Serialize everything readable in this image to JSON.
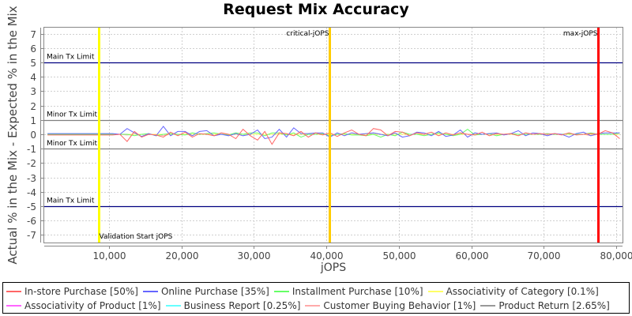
{
  "title": "Request Mix Accuracy",
  "chart_data": {
    "type": "line",
    "title": "Request Mix Accuracy",
    "xlabel": "jOPS",
    "ylabel": "Actual % in the Mix - Expected % in the Mix",
    "xlim": [
      1000,
      81000
    ],
    "ylim": [
      -7.5,
      7.5
    ],
    "x_ticks": [
      "10,000",
      "20,000",
      "30,000",
      "40,000",
      "50,000",
      "60,000",
      "70,000",
      "80,000"
    ],
    "x_tick_values": [
      10000,
      20000,
      30000,
      40000,
      50000,
      60000,
      70000,
      80000
    ],
    "y_ticks": [
      7,
      6,
      5,
      4,
      3,
      2,
      1,
      0,
      -1,
      -2,
      -3,
      -4,
      -5,
      -6,
      -7
    ],
    "grid": true,
    "legend_position": "bottom",
    "markers": [
      {
        "label": "Validation Start jOPS",
        "x": 8600,
        "color": "#ffff00"
      },
      {
        "label": "critical-jOPS",
        "x": 40400,
        "color": "#ffcc00"
      },
      {
        "label": "max-jOPS",
        "x": 77500,
        "color": "#ff0000"
      }
    ],
    "limits": [
      {
        "label": "Main Tx Limit",
        "y": 5,
        "color": "#000080"
      },
      {
        "label": "Minor Tx Limit",
        "y": 1,
        "color": "#808080"
      },
      {
        "label": "Minor Tx Limit",
        "y": -1,
        "color": "#808080"
      },
      {
        "label": "Main Tx Limit",
        "y": -5,
        "color": "#000080"
      }
    ],
    "series": [
      {
        "name": "In-store Purchase [50%]",
        "color": "#ff6666",
        "values": [
          -0.05,
          -0.05,
          -0.05,
          -0.05,
          -0.05,
          -0.05,
          -0.05,
          -0.05,
          -0.05,
          -0.05,
          0,
          -0.5,
          0.2,
          -0.2,
          0,
          -0.05,
          -0.2,
          0.15,
          -0.1,
          0.15,
          -0.2,
          0.05,
          0,
          -0.1,
          0.1,
          0,
          -0.3,
          0.35,
          -0.1,
          -0.4,
          0.2,
          -0.7,
          0.1,
          0.05,
          -0.1,
          0.2,
          -0.2,
          0.1,
          -0.05,
          0.1,
          -0.15,
          0.1,
          0.3,
          0,
          -0.1,
          0.4,
          0.3,
          -0.1,
          0.2,
          0.15,
          -0.1,
          0.1,
          0,
          0.15,
          -0.1,
          0.1,
          -0.05,
          0.1,
          0,
          -0.05,
          0.15,
          -0.1,
          0.05,
          0,
          0.05,
          -0.1,
          0.1,
          0,
          0.05,
          0,
          0.05,
          -0.05,
          0.1,
          -0.05,
          0,
          0.05,
          0,
          0.25,
          0.1,
          -0.3
        ]
      },
      {
        "name": "Online Purchase [35%]",
        "color": "#6666ff",
        "values": [
          0.05,
          0.05,
          0.05,
          0.05,
          0.05,
          0.05,
          0.05,
          0.05,
          0.05,
          0.05,
          0,
          0.4,
          0.1,
          -0.15,
          0.05,
          -0.1,
          0.55,
          -0.1,
          0.2,
          0.2,
          -0.1,
          0.2,
          0.25,
          -0.1,
          0,
          -0.1,
          0.05,
          -0.1,
          0,
          0.3,
          -0.3,
          -0.2,
          0.35,
          -0.2,
          0.45,
          0.05,
          0.05,
          0.1,
          0.1,
          -0.2,
          0.1,
          -0.1,
          0.1,
          0,
          0.05,
          0.1,
          0,
          -0.1,
          0.1,
          -0.2,
          -0.1,
          0.15,
          0.1,
          -0.1,
          0.2,
          -0.15,
          -0.05,
          0.3,
          -0.2,
          0.1,
          0,
          0.05,
          0.1,
          -0.05,
          0.05,
          0.25,
          -0.1,
          0.1,
          0.05,
          -0.1,
          0.05,
          0,
          -0.2,
          0.05,
          0.15,
          -0.1,
          0.05,
          0.1,
          0.1,
          0.1
        ]
      },
      {
        "name": "Installment Purchase [10%]",
        "color": "#66ff66",
        "values": [
          0,
          0,
          0,
          0,
          0,
          0,
          0,
          0,
          0,
          0,
          0,
          0,
          -0.1,
          0,
          0.05,
          -0.1,
          0,
          0.05,
          0,
          -0.05,
          0.1,
          0,
          0.05,
          0.1,
          0,
          -0.05,
          0.1,
          0,
          0.1,
          0.1,
          -0.1,
          0.1,
          0.1,
          -0.05,
          0.1,
          -0.2,
          0,
          0,
          0.05,
          -0.1,
          0,
          0.05,
          -0.05,
          -0.05,
          -0.1,
          0,
          -0.2,
          0,
          -0.1,
          0.15,
          0,
          0,
          -0.1,
          0,
          0.1,
          0,
          -0.1,
          0,
          0.35,
          -0.05,
          0,
          0.05,
          -0.1,
          0,
          0.05,
          0,
          0,
          0,
          0,
          0.05,
          0,
          0,
          0.05,
          0,
          0,
          0.1,
          0,
          0,
          0,
          0.1
        ]
      },
      {
        "name": "Associativity of Category [0.1%]",
        "color": "#ffff66",
        "values": [
          0,
          0,
          0,
          0,
          0,
          0,
          0,
          0,
          0,
          0,
          0,
          0,
          0,
          0,
          0,
          0,
          0,
          0,
          0,
          0,
          0,
          0,
          0,
          0,
          0,
          0,
          0,
          0,
          0,
          0,
          0,
          0,
          0,
          0,
          0,
          0,
          0,
          0,
          0,
          0,
          0,
          0,
          0,
          0,
          0,
          0,
          0,
          0,
          0,
          0,
          0,
          0,
          0,
          0,
          0,
          0,
          0,
          0,
          0,
          0,
          0,
          0,
          0,
          0,
          0,
          0,
          0,
          0,
          0,
          0,
          0,
          0,
          0,
          0,
          0,
          0,
          0,
          0,
          0,
          0
        ]
      },
      {
        "name": "Associativity of Product [1%]",
        "color": "#ff66ff",
        "values": [
          0,
          0,
          0,
          0,
          0,
          0,
          0,
          0,
          0,
          0,
          0,
          0,
          0,
          0,
          0,
          0,
          0,
          0,
          0,
          0,
          0,
          0,
          0,
          0,
          0,
          0,
          0,
          0,
          0,
          0,
          0,
          0,
          0,
          0,
          0,
          0,
          0,
          0,
          0,
          0,
          0,
          0,
          0,
          0,
          0,
          0,
          0,
          0,
          0,
          0,
          0,
          0,
          0,
          0,
          0,
          0,
          0,
          0,
          0,
          0,
          0,
          0,
          0,
          0,
          0,
          0,
          0,
          0,
          0,
          0,
          0,
          0,
          0,
          0,
          0,
          0,
          0,
          0,
          0,
          0
        ]
      },
      {
        "name": "Business Report [0.25%]",
        "color": "#66ffff",
        "values": [
          0,
          0,
          0,
          0,
          0,
          0,
          0,
          0,
          0,
          0,
          0,
          0,
          0,
          0,
          0,
          0,
          0,
          0,
          0,
          0,
          0,
          0,
          0,
          0,
          0,
          0,
          0,
          0,
          0,
          0,
          0,
          0,
          0,
          0,
          0,
          0,
          0,
          0,
          0,
          0,
          0,
          0,
          0,
          0,
          0,
          0,
          0,
          0,
          0,
          0,
          0,
          0,
          0,
          0,
          0,
          0,
          0,
          0,
          0,
          0,
          0,
          0,
          0,
          0,
          0,
          0,
          0,
          0,
          0,
          0,
          0,
          0,
          0,
          0,
          0,
          0,
          0,
          0,
          0,
          0
        ]
      },
      {
        "name": "Customer Buying Behavior [1%]",
        "color": "#ffaaaa",
        "values": [
          0,
          0,
          0,
          0,
          0,
          0,
          0,
          0,
          0,
          0,
          0,
          -0.05,
          0,
          0,
          0,
          0,
          -0.1,
          0,
          0,
          0,
          0,
          0,
          0,
          0,
          0,
          0,
          0,
          0,
          0,
          0,
          0,
          0,
          0,
          0,
          0,
          0,
          0,
          0,
          0,
          0,
          0,
          0,
          0,
          0,
          0,
          0,
          0,
          0,
          0,
          0,
          0,
          0,
          0,
          0,
          0,
          0,
          0,
          0,
          0,
          0,
          0,
          0,
          0,
          0,
          0,
          0,
          0,
          0,
          0,
          0,
          0,
          0,
          0,
          0,
          0,
          -0.1,
          0,
          0,
          0,
          0
        ]
      },
      {
        "name": "Product Return [2.65%]",
        "color": "#999999",
        "values": [
          0,
          0,
          0,
          0,
          0,
          0,
          0,
          0,
          0,
          0,
          0,
          0,
          0,
          0,
          0,
          0,
          0,
          0,
          0,
          0,
          0,
          0,
          0,
          0,
          0,
          0,
          0,
          0,
          0,
          0,
          0,
          0,
          0,
          0,
          0,
          0,
          0,
          0,
          0,
          0,
          0,
          0,
          0,
          0,
          0,
          0.1,
          0,
          0,
          0,
          0,
          0,
          0,
          0,
          0,
          0,
          0,
          0,
          0,
          0,
          0,
          0,
          0,
          0,
          0,
          0,
          0,
          0,
          0,
          0,
          0,
          0,
          0,
          0,
          0,
          0,
          0,
          0,
          0,
          0,
          0
        ]
      }
    ],
    "x_start": 1500,
    "x_step": 1000
  }
}
